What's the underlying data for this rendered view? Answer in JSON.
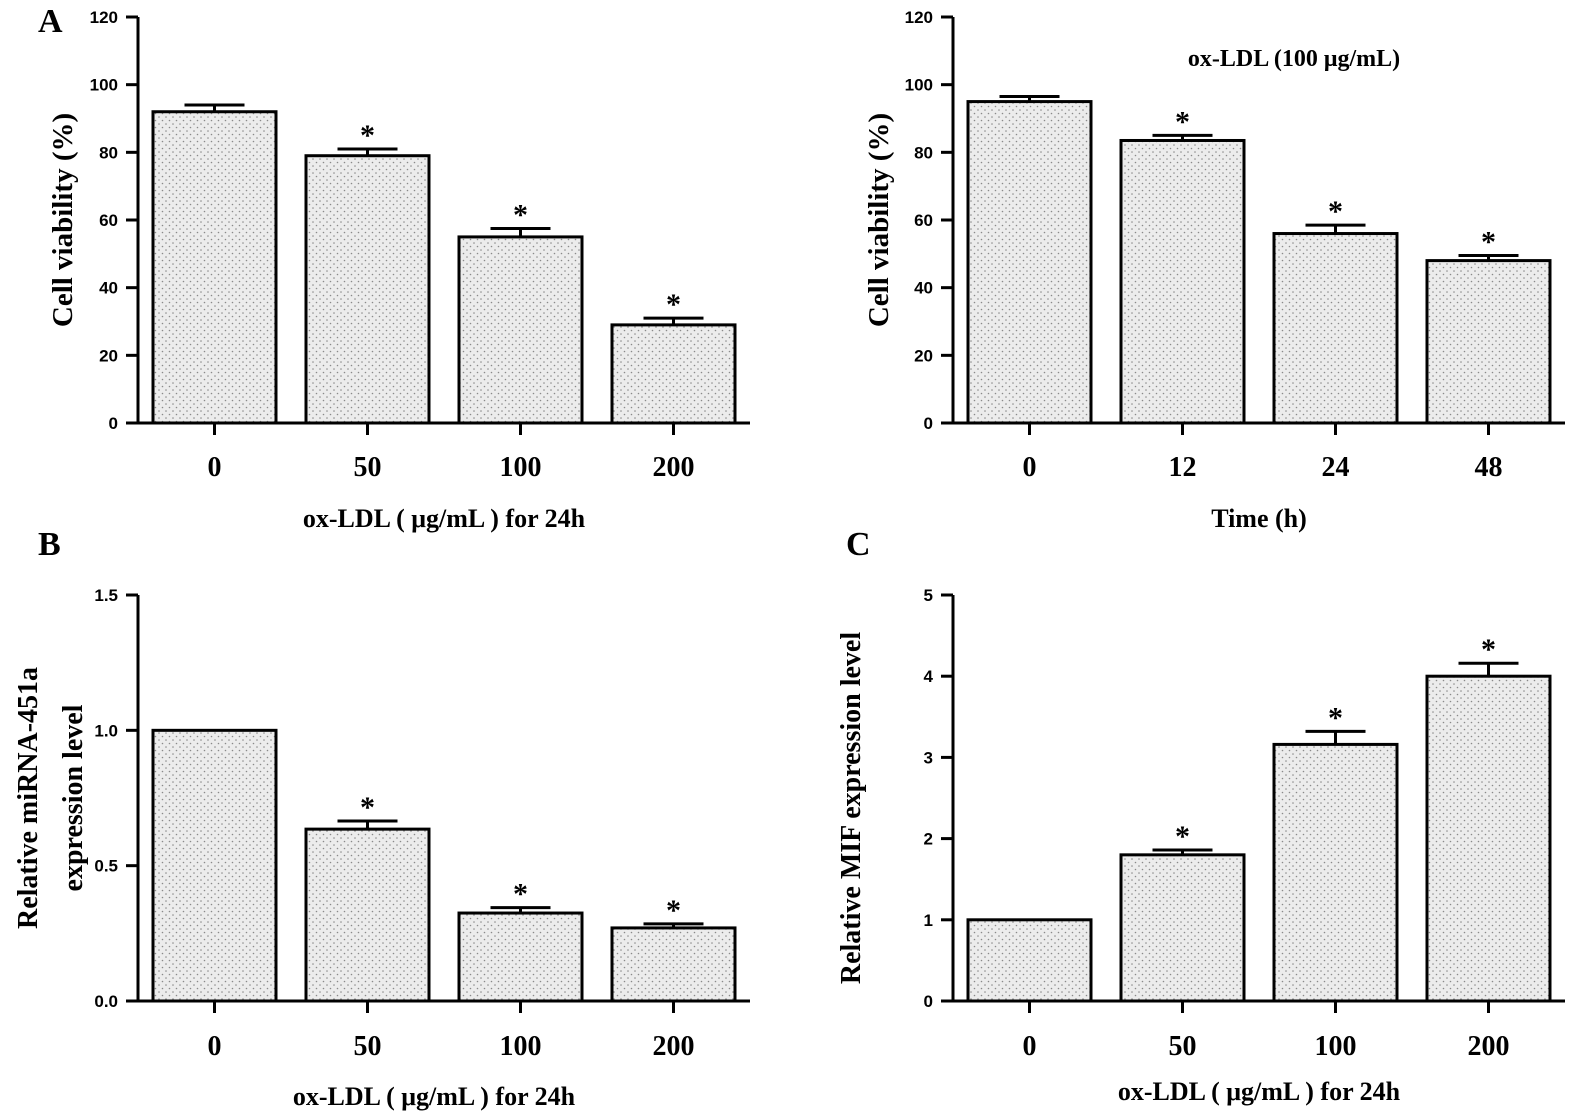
{
  "figure": {
    "panel_labels": {
      "A": "A",
      "B": "B",
      "C": "C"
    },
    "colors": {
      "bar_fill": "#ececec",
      "dot": "#8a8a8a",
      "stroke": "#000000",
      "text": "#000000"
    }
  },
  "chart_data": [
    {
      "id": "A-left",
      "type": "bar",
      "title": "",
      "annotation": "",
      "xlabel": "ox-LDL ( μg/mL ) for 24h",
      "ylabel": "Cell viability (%)",
      "categories": [
        "0",
        "50",
        "100",
        "200"
      ],
      "values": [
        92,
        79,
        55,
        29
      ],
      "errors": [
        2,
        2,
        2.5,
        2
      ],
      "significance": [
        "",
        "*",
        "*",
        "*"
      ],
      "ylim": [
        0,
        120
      ],
      "yticks": [
        "0",
        "20",
        "40",
        "60",
        "80",
        "100",
        "120"
      ],
      "grid": false,
      "legend": "none"
    },
    {
      "id": "A-right",
      "type": "bar",
      "title": "",
      "annotation": "ox-LDL (100 μg/mL)",
      "xlabel": "Time (h)",
      "ylabel": "Cell viability (%)",
      "categories": [
        "0",
        "12",
        "24",
        "48"
      ],
      "values": [
        95,
        83.5,
        56,
        48
      ],
      "errors": [
        1.5,
        1.5,
        2.5,
        1.5
      ],
      "significance": [
        "",
        "*",
        "*",
        "*"
      ],
      "ylim": [
        0,
        120
      ],
      "yticks": [
        "0",
        "20",
        "40",
        "60",
        "80",
        "100",
        "120"
      ],
      "grid": false,
      "legend": "none"
    },
    {
      "id": "B",
      "type": "bar",
      "title": "",
      "annotation": "",
      "xlabel": "ox-LDL ( μg/mL ) for 24h",
      "ylabel": "Relative miRNA-451a",
      "ylabel2": "expression level",
      "categories": [
        "0",
        "50",
        "100",
        "200"
      ],
      "values": [
        1.0,
        0.635,
        0.325,
        0.27
      ],
      "errors": [
        0,
        0.03,
        0.02,
        0.015
      ],
      "significance": [
        "",
        "*",
        "*",
        "*"
      ],
      "ylim": [
        0,
        1.5
      ],
      "yticks": [
        "0.0",
        "0.5",
        "1.0",
        "1.5"
      ],
      "grid": false,
      "legend": "none"
    },
    {
      "id": "C",
      "type": "bar",
      "title": "",
      "annotation": "",
      "xlabel": "ox-LDL ( μg/mL ) for 24h",
      "ylabel": "Relative MIF expression level",
      "categories": [
        "0",
        "50",
        "100",
        "200"
      ],
      "values": [
        1.0,
        1.8,
        3.16,
        4.0
      ],
      "errors": [
        0,
        0.06,
        0.16,
        0.16
      ],
      "significance": [
        "",
        "*",
        "*",
        "*"
      ],
      "ylim": [
        0,
        5
      ],
      "yticks": [
        "0",
        "1",
        "2",
        "3",
        "4",
        "5"
      ],
      "grid": false,
      "legend": "none"
    }
  ]
}
